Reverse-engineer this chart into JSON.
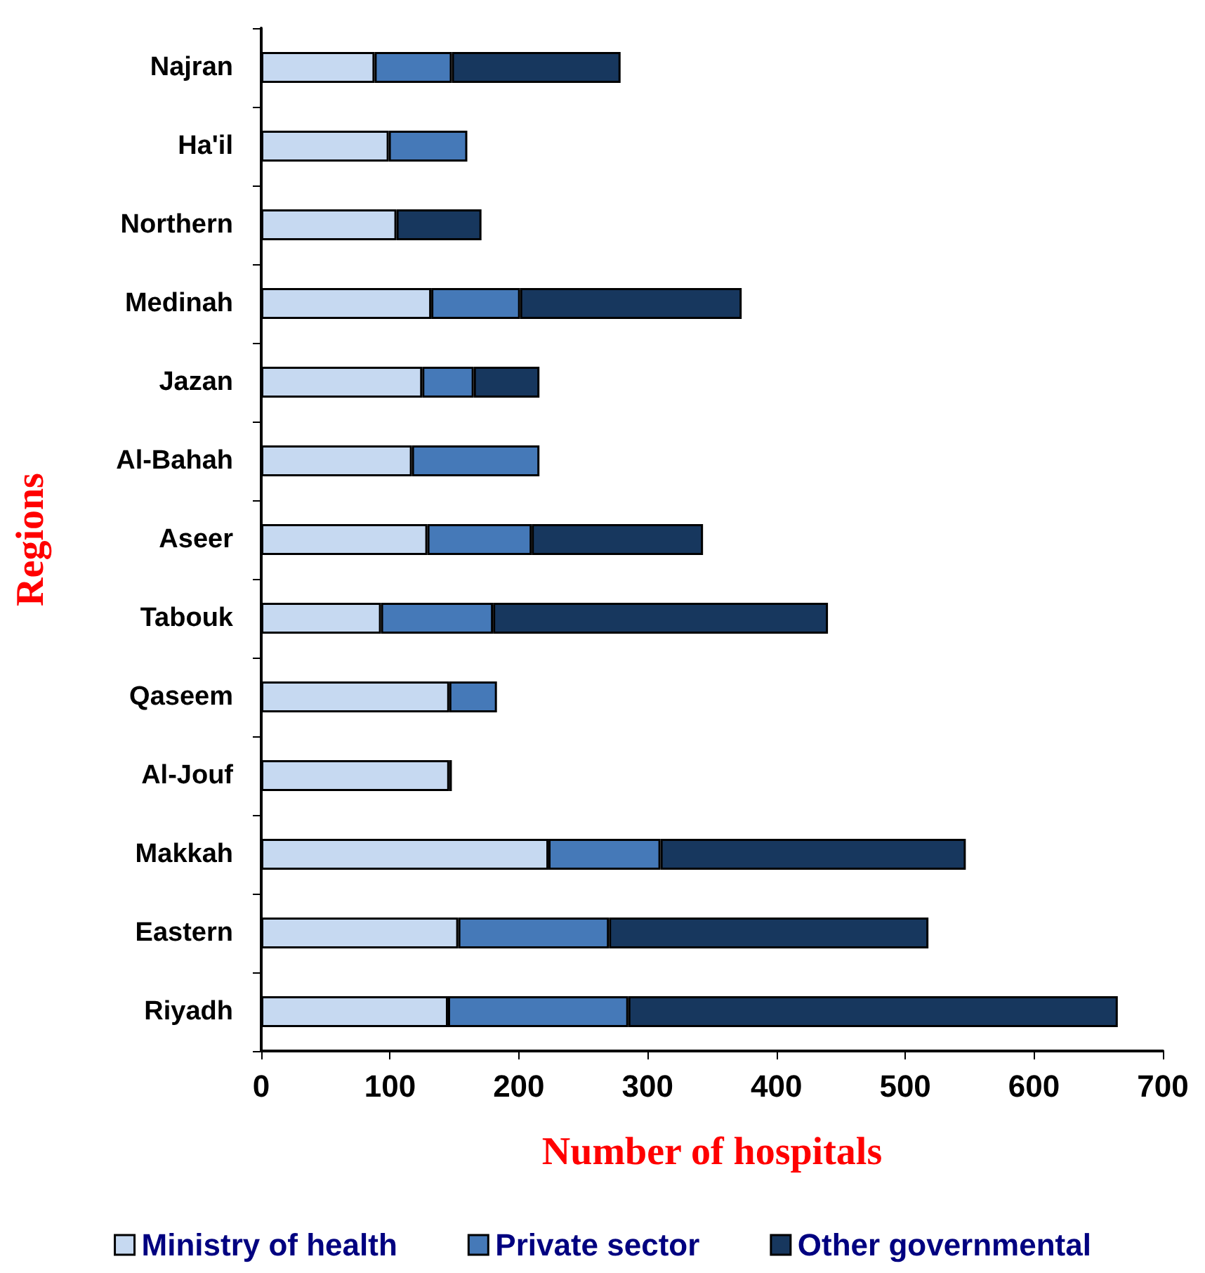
{
  "chart_data": {
    "type": "bar",
    "orientation": "horizontal",
    "stacked": true,
    "xlabel": "Number of hospitals",
    "ylabel": "Regions",
    "categories": [
      "Najran",
      "Ha'il",
      "Northern",
      "Medinah",
      "Jazan",
      "Al-Bahah",
      "Aseer",
      "Tabouk",
      "Qaseem",
      "Al-Jouf",
      "Makkah",
      "Eastern",
      "Riyadh"
    ],
    "series": [
      {
        "name": "Ministry of health",
        "color": "#c6d9f1",
        "values": [
          88,
          99,
          105,
          132,
          125,
          117,
          129,
          93,
          146,
          146,
          223,
          153,
          145
        ]
      },
      {
        "name": "Private sector",
        "color": "#4579b8",
        "values": [
          60,
          61,
          null,
          69,
          40,
          99,
          81,
          87,
          37,
          null,
          87,
          117,
          140
        ]
      },
      {
        "name": "Other governmental",
        "color": "#17375e",
        "values": [
          131,
          null,
          66,
          172,
          51,
          null,
          133,
          260,
          null,
          2,
          237,
          248,
          380
        ]
      }
    ],
    "xlim": [
      0,
      700
    ],
    "xticks": [
      0,
      100,
      200,
      300,
      400,
      500,
      600,
      700
    ],
    "grid": false,
    "legend": "bottom"
  }
}
